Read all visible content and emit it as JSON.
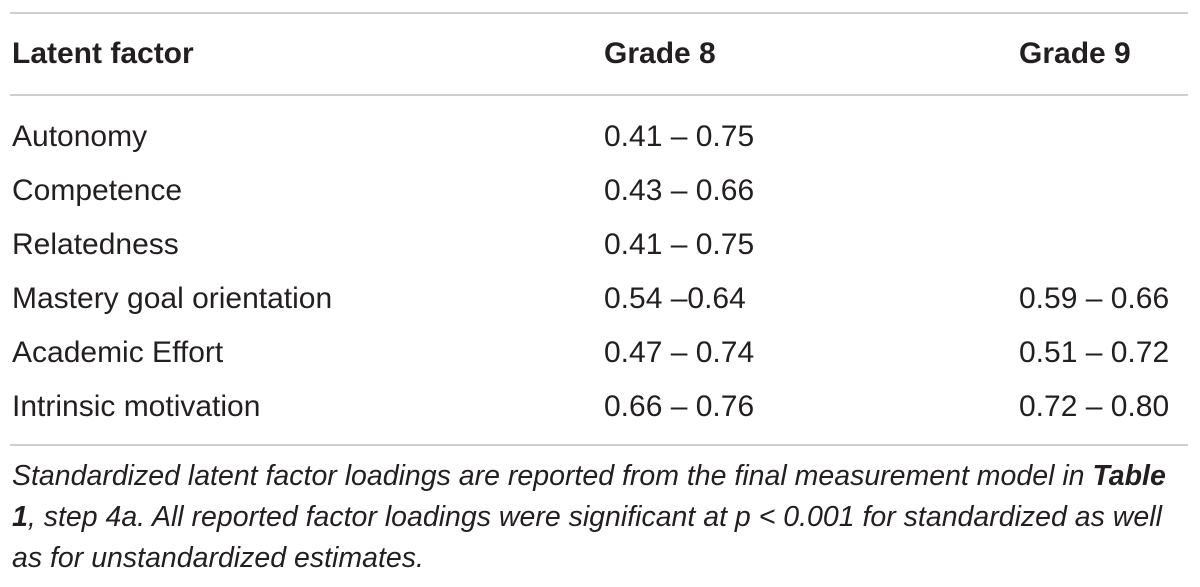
{
  "table": {
    "headers": [
      "Latent factor",
      "Grade 8",
      "Grade 9"
    ],
    "rows": [
      {
        "factor": "Autonomy",
        "grade8": "0.41 – 0.75",
        "grade9": ""
      },
      {
        "factor": "Competence",
        "grade8": "0.43 – 0.66",
        "grade9": ""
      },
      {
        "factor": "Relatedness",
        "grade8": "0.41 – 0.75",
        "grade9": ""
      },
      {
        "factor": "Mastery goal orientation",
        "grade8": "0.54 –0.64",
        "grade9": "0.59 – 0.66"
      },
      {
        "factor": "Academic Effort",
        "grade8": "0.47 – 0.74",
        "grade9": "0.51 – 0.72"
      },
      {
        "factor": "Intrinsic motivation",
        "grade8": "0.66 – 0.76",
        "grade9": "0.72 – 0.80"
      }
    ]
  },
  "footnote": {
    "part1": "Standardized latent factor loadings are reported from the final measurement model in ",
    "table_ref": "Table 1",
    "part2": ", step 4a. All reported factor loadings were significant at p < 0.001 for standardized as well as for unstandardized estimates."
  }
}
